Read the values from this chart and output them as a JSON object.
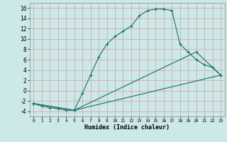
{
  "title": "",
  "xlabel": "Humidex (Indice chaleur)",
  "ylabel": "",
  "background_color": "#cce8e8",
  "grid_color": "#d4a0a0",
  "line_color": "#1a6e6a",
  "xlim": [
    -0.5,
    23.5
  ],
  "ylim": [
    -5.0,
    17.0
  ],
  "xticks": [
    0,
    1,
    2,
    3,
    4,
    5,
    6,
    7,
    8,
    9,
    10,
    11,
    12,
    13,
    14,
    15,
    16,
    17,
    18,
    19,
    20,
    21,
    22,
    23
  ],
  "yticks": [
    -4,
    -2,
    0,
    2,
    4,
    6,
    8,
    10,
    12,
    14,
    16
  ],
  "curve1_x": [
    0,
    1,
    2,
    3,
    4,
    5,
    6,
    7,
    8,
    9,
    10,
    11,
    12,
    13,
    14,
    15,
    16,
    17,
    18,
    19,
    20,
    21,
    22,
    23
  ],
  "curve1_y": [
    -2.5,
    -3.0,
    -3.3,
    -3.5,
    -3.8,
    -3.8,
    -0.5,
    3.0,
    6.5,
    9.0,
    10.5,
    11.5,
    12.5,
    14.5,
    15.5,
    15.8,
    15.8,
    15.5,
    9.0,
    7.5,
    6.0,
    5.0,
    4.5,
    3.0
  ],
  "curve2_x": [
    0,
    5,
    23
  ],
  "curve2_y": [
    -2.5,
    -3.8,
    3.0
  ],
  "curve3_x": [
    0,
    5,
    20,
    23
  ],
  "curve3_y": [
    -2.5,
    -3.8,
    7.5,
    3.0
  ],
  "figsize": [
    3.2,
    2.0
  ],
  "dpi": 100
}
